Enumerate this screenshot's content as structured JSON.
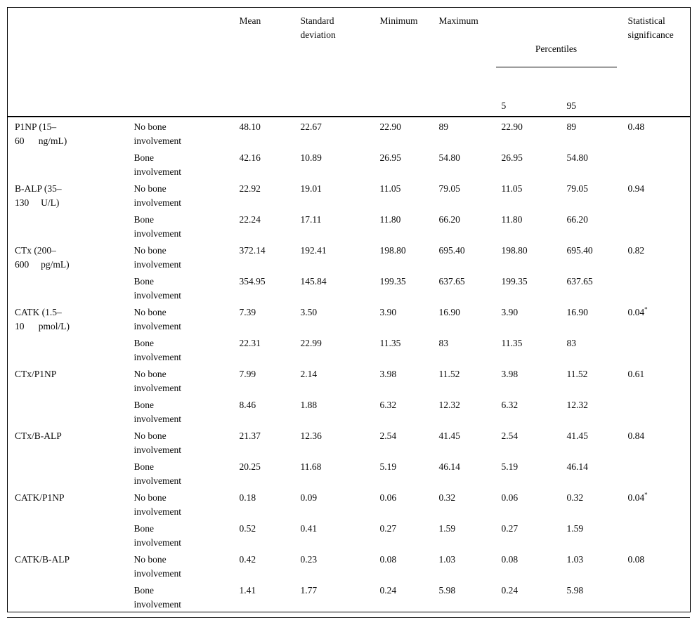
{
  "page": {
    "background": "#ffffff",
    "text_color": "#0b0b0b"
  },
  "table": {
    "header": {
      "mean": "Mean",
      "std_deviation": "Standard\ndeviation",
      "minimum": "Minimum",
      "maximum": "Maximum",
      "percentiles": "Percentiles",
      "p5": "5",
      "p95": "95",
      "significance": "Statistical\nsignificance"
    },
    "groups": [
      {
        "marker": "P1NP (15–\n60      ng/mL)",
        "rows": [
          {
            "group": "No bone\ninvolvement",
            "mean": "48.10",
            "std": "22.67",
            "min": "22.90",
            "max": "89",
            "p5": "22.90",
            "p95": "89",
            "sig": "0.48",
            "sig_mark": ""
          },
          {
            "group": "Bone\ninvolvement",
            "mean": "42.16",
            "std": "10.89",
            "min": "26.95",
            "max": "54.80",
            "p5": "26.95",
            "p95": "54.80",
            "sig": "",
            "sig_mark": ""
          }
        ]
      },
      {
        "marker": "B-ALP (35–\n130     U/L)",
        "rows": [
          {
            "group": "No bone\ninvolvement",
            "mean": "22.92",
            "std": "19.01",
            "min": "11.05",
            "max": "79.05",
            "p5": "11.05",
            "p95": "79.05",
            "sig": "0.94",
            "sig_mark": ""
          },
          {
            "group": "Bone\ninvolvement",
            "mean": "22.24",
            "std": "17.11",
            "min": "11.80",
            "max": "66.20",
            "p5": "11.80",
            "p95": "66.20",
            "sig": "",
            "sig_mark": ""
          }
        ]
      },
      {
        "marker": "CTx (200–\n600     pg/mL)",
        "rows": [
          {
            "group": "No bone\ninvolvement",
            "mean": "372.14",
            "std": "192.41",
            "min": "198.80",
            "max": "695.40",
            "p5": "198.80",
            "p95": "695.40",
            "sig": "0.82",
            "sig_mark": ""
          },
          {
            "group": "Bone\ninvolvement",
            "mean": "354.95",
            "std": "145.84",
            "min": "199.35",
            "max": "637.65",
            "p5": "199.35",
            "p95": "637.65",
            "sig": "",
            "sig_mark": ""
          }
        ]
      },
      {
        "marker": "CATK (1.5–\n10      pmol/L)",
        "rows": [
          {
            "group": "No bone\ninvolvement",
            "mean": "7.39",
            "std": "3.50",
            "min": "3.90",
            "max": "16.90",
            "p5": "3.90",
            "p95": "16.90",
            "sig": "0.04",
            "sig_mark": "*"
          },
          {
            "group": "Bone\ninvolvement",
            "mean": "22.31",
            "std": "22.99",
            "min": "11.35",
            "max": "83",
            "p5": "11.35",
            "p95": "83",
            "sig": "",
            "sig_mark": ""
          }
        ]
      },
      {
        "marker": "CTx/P1NP",
        "rows": [
          {
            "group": "No bone\ninvolvement",
            "mean": "7.99",
            "std": "2.14",
            "min": "3.98",
            "max": "11.52",
            "p5": "3.98",
            "p95": "11.52",
            "sig": "0.61",
            "sig_mark": ""
          },
          {
            "group": "Bone\ninvolvement",
            "mean": "8.46",
            "std": "1.88",
            "min": "6.32",
            "max": "12.32",
            "p5": "6.32",
            "p95": "12.32",
            "sig": "",
            "sig_mark": ""
          }
        ]
      },
      {
        "marker": "CTx/B-ALP",
        "rows": [
          {
            "group": "No bone\ninvolvement",
            "mean": "21.37",
            "std": "12.36",
            "min": "2.54",
            "max": "41.45",
            "p5": "2.54",
            "p95": "41.45",
            "sig": "0.84",
            "sig_mark": ""
          },
          {
            "group": "Bone\ninvolvement",
            "mean": "20.25",
            "std": "11.68",
            "min": "5.19",
            "max": "46.14",
            "p5": "5.19",
            "p95": "46.14",
            "sig": "",
            "sig_mark": ""
          }
        ]
      },
      {
        "marker": "CATK/P1NP",
        "rows": [
          {
            "group": "No bone\ninvolvement",
            "mean": "0.18",
            "std": "0.09",
            "min": "0.06",
            "max": "0.32",
            "p5": "0.06",
            "p95": "0.32",
            "sig": "0.04",
            "sig_mark": "*"
          },
          {
            "group": "Bone\ninvolvement",
            "mean": "0.52",
            "std": "0.41",
            "min": "0.27",
            "max": "1.59",
            "p5": "0.27",
            "p95": "1.59",
            "sig": "",
            "sig_mark": ""
          }
        ]
      },
      {
        "marker": "CATK/B-ALP",
        "rows": [
          {
            "group": "No bone\ninvolvement",
            "mean": "0.42",
            "std": "0.23",
            "min": "0.08",
            "max": "1.03",
            "p5": "0.08",
            "p95": "1.03",
            "sig": "0.08",
            "sig_mark": ""
          },
          {
            "group": "Bone\ninvolvement",
            "mean": "1.41",
            "std": "1.77",
            "min": "0.24",
            "max": "5.98",
            "p5": "0.24",
            "p95": "5.98",
            "sig": "",
            "sig_mark": ""
          }
        ]
      }
    ]
  }
}
